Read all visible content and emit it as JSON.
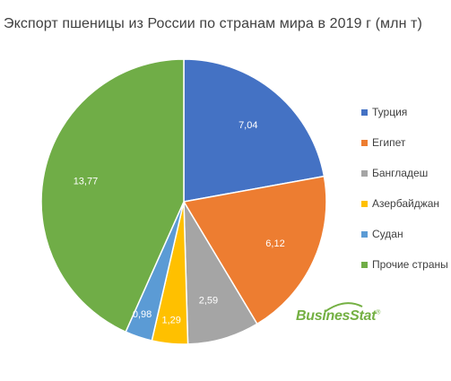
{
  "chart_data": {
    "type": "pie",
    "title": "Экспорт пшеницы из России по странам мира в 2019 г (млн т)",
    "slices": [
      {
        "label": "Турция",
        "value": 7.04,
        "value_label": "7,04",
        "color": "#4472c4"
      },
      {
        "label": "Египет",
        "value": 6.12,
        "value_label": "6,12",
        "color": "#ed7d31"
      },
      {
        "label": "Бангладеш",
        "value": 2.59,
        "value_label": "2,59",
        "color": "#a5a5a5"
      },
      {
        "label": "Азербайджан",
        "value": 1.29,
        "value_label": "1,29",
        "color": "#ffc000"
      },
      {
        "label": "Судан",
        "value": 0.98,
        "value_label": "0,98",
        "color": "#5b9bd5"
      },
      {
        "label": "Прочие страны",
        "value": 13.77,
        "value_label": "13,77",
        "color": "#70ad47"
      }
    ],
    "legend_position": "right",
    "start_angle_deg": 0,
    "direction": "clockwise"
  },
  "legend": {
    "items": [
      {
        "label": "Турция"
      },
      {
        "label": "Египет"
      },
      {
        "label": "Бангладеш"
      },
      {
        "label": "Азербайджан"
      },
      {
        "label": "Судан"
      },
      {
        "label": "Прочие страны"
      }
    ]
  },
  "logo": {
    "text": "BusinesStat",
    "mark": "®",
    "color": "#74b043"
  }
}
